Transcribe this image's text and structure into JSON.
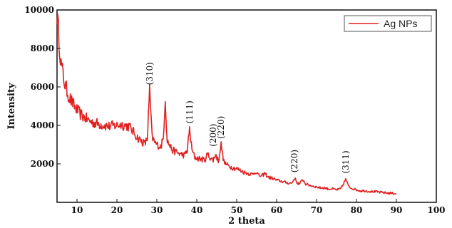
{
  "chart_data": {
    "type": "line",
    "title": "",
    "xlabel": "2 theta",
    "ylabel": "Intensity",
    "xlim": [
      5,
      100
    ],
    "ylim": [
      0,
      10000
    ],
    "xticks": [
      10,
      20,
      30,
      40,
      50,
      60,
      70,
      80,
      90,
      100
    ],
    "yticks": [
      2000,
      4000,
      6000,
      8000,
      10000
    ],
    "grid": false,
    "legend_position": "top-right",
    "series": [
      {
        "name": "Ag NPs",
        "color": "#e02020",
        "x": [
          5,
          6,
          7,
          8,
          9,
          10,
          11,
          12,
          13,
          14,
          15,
          16,
          17,
          18,
          19,
          20,
          21,
          22,
          23,
          24,
          25,
          26,
          27,
          27.6,
          28.2,
          28.8,
          29.5,
          30,
          31,
          31.6,
          32.1,
          32.6,
          33.5,
          34,
          35,
          36,
          37,
          37.6,
          38.2,
          38.8,
          39.5,
          40,
          41,
          42,
          42.7,
          43.5,
          44.1,
          44.7,
          45.4,
          46.1,
          46.8,
          47.5,
          48,
          49,
          50,
          51,
          52,
          53,
          54,
          54.8,
          55.5,
          56.2,
          57,
          58,
          59,
          60,
          61,
          62,
          63,
          63.8,
          64.5,
          65.2,
          65.8,
          66.5,
          67.3,
          68,
          69,
          70,
          71,
          72,
          73,
          74,
          75,
          76,
          76.6,
          77.3,
          78,
          78.6,
          79.3,
          80,
          81,
          82,
          83,
          84,
          85,
          86,
          87,
          88,
          89,
          90
        ],
        "y": [
          9800,
          7200,
          6100,
          5500,
          5100,
          4800,
          4550,
          4400,
          4250,
          4150,
          4100,
          4050,
          4000,
          3950,
          3980,
          4000,
          4050,
          4000,
          3950,
          3700,
          3400,
          3200,
          3050,
          3300,
          5800,
          3400,
          3100,
          3000,
          2900,
          3300,
          5400,
          3200,
          2850,
          2700,
          2600,
          2500,
          2450,
          2700,
          3800,
          2700,
          2350,
          2300,
          2250,
          2200,
          2500,
          2300,
          2200,
          2500,
          2150,
          3000,
          2100,
          1950,
          1900,
          1800,
          1750,
          1650,
          1550,
          1500,
          1450,
          1600,
          1400,
          1350,
          1500,
          1300,
          1250,
          1150,
          1100,
          1050,
          1000,
          1000,
          1250,
          1000,
          950,
          1200,
          950,
          900,
          850,
          800,
          750,
          750,
          700,
          700,
          650,
          700,
          900,
          1200,
          850,
          750,
          700,
          650,
          600,
          600,
          580,
          560,
          550,
          520,
          500,
          480,
          470,
          450
        ]
      }
    ],
    "annotations": [
      {
        "text": "(310)",
        "x": 28.2,
        "y": 5800
      },
      {
        "text": "(111)",
        "x": 38.2,
        "y": 3800
      },
      {
        "text": "(200)",
        "x": 44.1,
        "y": 2600
      },
      {
        "text": "(220)",
        "x": 46.1,
        "y": 3000
      },
      {
        "text": "(220)",
        "x": 64.5,
        "y": 1250
      },
      {
        "text": "(311)",
        "x": 77.3,
        "y": 1200
      }
    ]
  }
}
